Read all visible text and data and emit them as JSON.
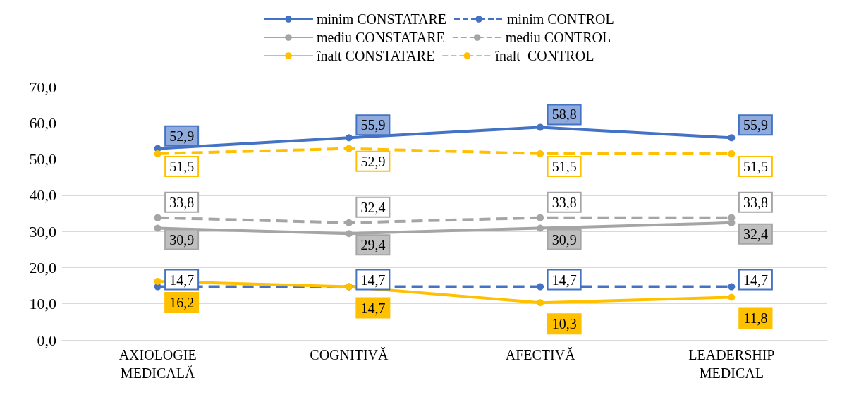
{
  "chart_data": {
    "type": "line",
    "categories": [
      "AXIOLOGIE\nMEDICALĂ",
      "COGNITIVĂ",
      "AFECTIVĂ",
      "LEADERSHIP\nMEDICAL"
    ],
    "ylim": [
      0,
      70
    ],
    "yticks": [
      {
        "value": 0,
        "label": "0,0"
      },
      {
        "value": 10,
        "label": "10,0"
      },
      {
        "value": 20,
        "label": "20,0"
      },
      {
        "value": 30,
        "label": "30,0"
      },
      {
        "value": 40,
        "label": "40,0"
      },
      {
        "value": 50,
        "label": "50,0"
      },
      {
        "value": 60,
        "label": "60,0"
      },
      {
        "value": 70,
        "label": "70,0"
      }
    ],
    "grid": "y",
    "legend": "top",
    "marker": "circle",
    "series": [
      {
        "name": "minim CONSTATARE",
        "color": "#4472c4",
        "line_style": "solid",
        "values": [
          52.9,
          55.9,
          58.8,
          55.9
        ],
        "value_labels": [
          "52,9",
          "55,9",
          "58,8",
          "55,9"
        ]
      },
      {
        "name": "minim CONTROL",
        "color": "#4472c4",
        "line_style": "dashed",
        "values": [
          14.7,
          14.7,
          14.7,
          14.7
        ],
        "value_labels": [
          "14,7",
          "14,7",
          "14,7",
          "14,7"
        ]
      },
      {
        "name": "mediu CONSTATARE",
        "color": "#a5a5a5",
        "line_style": "solid",
        "values": [
          30.9,
          29.4,
          30.9,
          32.4
        ],
        "value_labels": [
          "30,9",
          "29,4",
          "30,9",
          "32,4"
        ]
      },
      {
        "name": "mediu CONTROL",
        "color": "#a5a5a5",
        "line_style": "dashed",
        "values": [
          33.8,
          32.4,
          33.8,
          33.8
        ],
        "value_labels": [
          "33,8",
          "32,4",
          "33,8",
          "33,8"
        ]
      },
      {
        "name": "înalt CONSTATARE",
        "color": "#ffc000",
        "line_style": "solid",
        "values": [
          16.2,
          14.7,
          10.3,
          11.8
        ],
        "value_labels": [
          "16,2",
          "14,7",
          "10,3",
          "11,8"
        ]
      },
      {
        "name": "înalt  CONTROL",
        "color": "#ffc000",
        "line_style": "dashed",
        "values": [
          51.5,
          52.9,
          51.5,
          51.5
        ],
        "value_labels": [
          "51,5",
          "52,9",
          "51,5",
          "51,5"
        ]
      }
    ]
  }
}
